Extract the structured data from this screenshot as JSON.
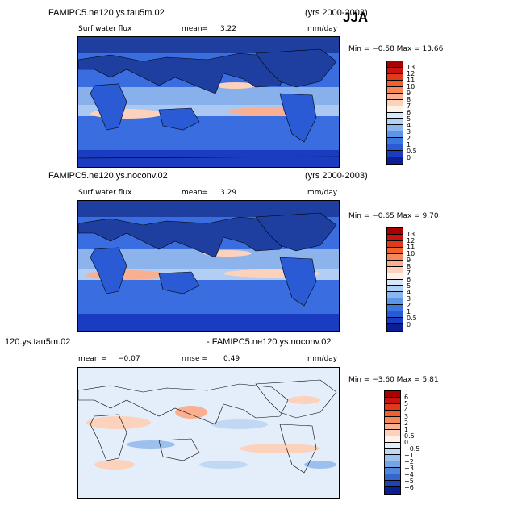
{
  "season": "JJA",
  "panels": [
    {
      "case_title": "FAMIPC5.ne120.ys.tau5m.02",
      "years": "(yrs 2000-2003)",
      "variable": "Surf water flux",
      "stat1_label": "mean=",
      "stat1_value": "3.22",
      "units": "mm/day",
      "minmax": "Min =  −0.58 Max =  13.66",
      "colorbar_labels": [
        "13",
        "12",
        "11",
        "10",
        "9",
        "8",
        "7",
        "6",
        "5",
        "4",
        "3",
        "2",
        "1",
        "0.5",
        "0"
      ]
    },
    {
      "case_title": "FAMIPC5.ne120.ys.noconv.02",
      "years": "(yrs 2000-2003)",
      "variable": "Surf water flux",
      "stat1_label": "mean=",
      "stat1_value": "3.29",
      "units": "mm/day",
      "minmax": "Min =  −0.65 Max =   9.70",
      "colorbar_labels": [
        "13",
        "12",
        "11",
        "10",
        "9",
        "8",
        "7",
        "6",
        "5",
        "4",
        "3",
        "2",
        "1",
        "0.5",
        "0"
      ]
    },
    {
      "case_title_left": "120.ys.tau5m.02",
      "case_title_right": "- FAMIPC5.ne120.ys.noconv.02",
      "stat1_label": "mean =",
      "stat1_value": "−0.07",
      "stat2_label": "rmse =",
      "stat2_value": "0.49",
      "units": "mm/day",
      "minmax": "Min =  −3.60 Max =   5.81",
      "colorbar_labels": [
        "6",
        "5",
        "4",
        "3",
        "2",
        "1",
        "0.5",
        "0",
        "−0.5",
        "−1",
        "−2",
        "−3",
        "−4",
        "−5",
        "−6"
      ]
    }
  ],
  "colors": {
    "abs_scale": [
      "#aa0000",
      "#cc1111",
      "#e03a1a",
      "#f06030",
      "#f58a58",
      "#fab090",
      "#fcd2bc",
      "#fff0e8",
      "#d8e8fa",
      "#b2d2f4",
      "#88b6ee",
      "#5c96e6",
      "#3a78e0",
      "#2a5ad4",
      "#1a3cc0",
      "#0c1e96"
    ],
    "diff_scale": [
      "#aa0000",
      "#cc1111",
      "#e03a1a",
      "#f06030",
      "#f58a58",
      "#fab090",
      "#fcd2bc",
      "#fff0e8",
      "#e4eefa",
      "#c0d8f4",
      "#9cc0ee",
      "#76a4e6",
      "#5086dc",
      "#3466cc",
      "#1c44b8",
      "#0c1e96"
    ],
    "land": "#1e3fa0",
    "ocean_bg": "#3a6ee0"
  }
}
